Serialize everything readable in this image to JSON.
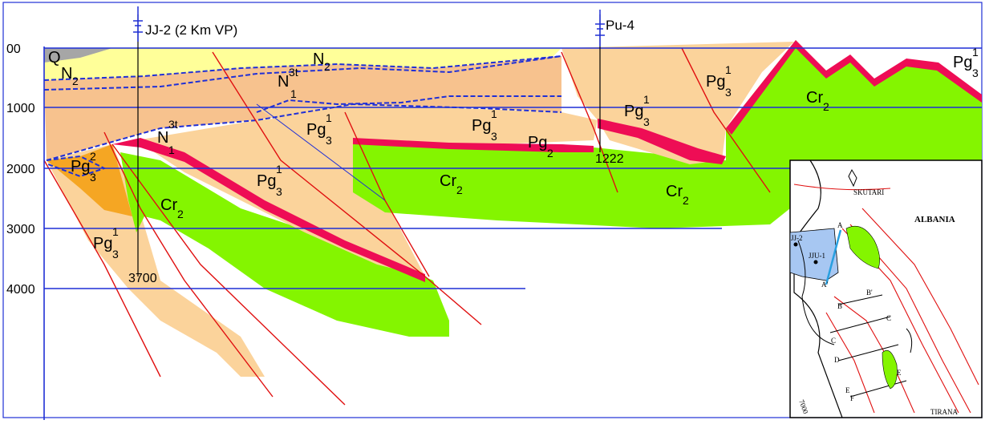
{
  "colors": {
    "neogene_yellow": "#ffff99",
    "n1_orange": "#f7c28e",
    "pg3_tan": "#fbd39b",
    "pg3_dark": "#f5a623",
    "cretaceous_green": "#84f500",
    "pg2_red": "#ee0d55",
    "quaternary_grey": "#a6a6a6",
    "depth_line_blue": "#1f2fd6",
    "fault_red": "#e01010",
    "water_blue": "#a7c7f2"
  },
  "depth_axis": {
    "labels": [
      "00",
      "1000",
      "2000",
      "3000",
      "4000"
    ]
  },
  "wells": [
    {
      "icon": "well-icon",
      "name": "JJ-2 (2 Km VP)",
      "td": "3700"
    },
    {
      "icon": "well-icon",
      "name": "Pu-4",
      "td": "1222"
    }
  ],
  "units": {
    "q": "Q",
    "n2": {
      "base": "N",
      "sub": "2"
    },
    "n2b": {
      "base": "N",
      "sub": "2"
    },
    "n1_upper": {
      "base": "N",
      "sup": "3t",
      "sub": "1"
    },
    "n1_lower": {
      "base": "N",
      "sup": "3t",
      "sub": "1"
    },
    "pg3_a": {
      "base": "Pg",
      "sup": "1",
      "sub": "3"
    },
    "pg3_b": {
      "base": "Pg",
      "sup": "1",
      "sub": "3"
    },
    "pg3_c": {
      "base": "Pg",
      "sup": "1",
      "sub": "3"
    },
    "pg3_d": {
      "base": "Pg",
      "sup": "1",
      "sub": "3"
    },
    "pg3_e": {
      "base": "Pg",
      "sup": "1",
      "sub": "3"
    },
    "pg3_f": {
      "base": "Pg",
      "sup": "1",
      "sub": "3"
    },
    "pg3_g": {
      "base": "Pg",
      "sup": "1",
      "sub": "3"
    },
    "pg3_2": {
      "base": "Pg",
      "sup": "2",
      "sub": "3"
    },
    "pg2": {
      "base": "Pg",
      "sub": "2"
    },
    "cr_a": {
      "base": "Cr",
      "sub": "2"
    },
    "cr_b": {
      "base": "Cr",
      "sub": "2"
    },
    "cr_c": {
      "base": "Cr",
      "sub": "2"
    },
    "cr_d": {
      "base": "Cr",
      "sub": "2"
    }
  },
  "inset_map": {
    "country": "ALBANIA",
    "city_north": "SKUTARI",
    "city_south": "TIRANA",
    "wells": [
      "JJ-2",
      "JJU-1"
    ],
    "section_letters": [
      "A",
      "A'",
      "B",
      "B'",
      "C",
      "C",
      "D",
      "E",
      "E",
      "F"
    ],
    "contour": "7000"
  }
}
